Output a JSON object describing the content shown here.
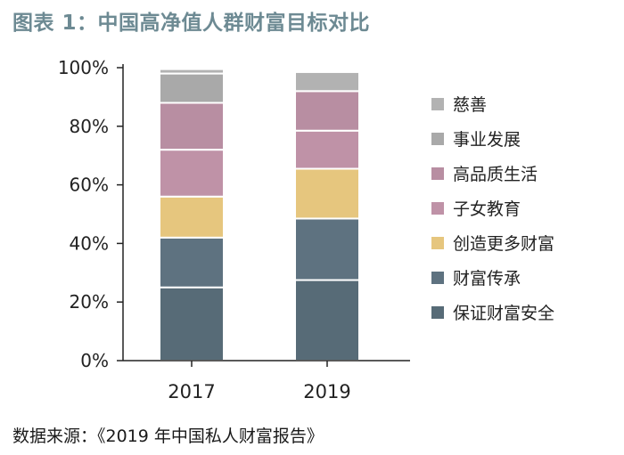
{
  "title": "图表 1：中国高净值人群财富目标对比",
  "source": "数据来源：《2019 年中国私人财富报告》",
  "colors": {
    "title": "#6d8a93",
    "axis": "#222222",
    "separator": "#ffffff"
  },
  "chart_data": {
    "type": "bar",
    "stacked": true,
    "categories": [
      "2017",
      "2019"
    ],
    "y_ticks": [
      "0%",
      "20%",
      "40%",
      "60%",
      "80%",
      "100%"
    ],
    "ylim": [
      0,
      100
    ],
    "legend_position": "right",
    "series": [
      {
        "name": "保证财富安全",
        "color": "#576b77",
        "values": [
          25,
          27.5
        ]
      },
      {
        "name": "财富传承",
        "color": "#5e7280",
        "values": [
          17,
          21
        ]
      },
      {
        "name": "创造更多财富",
        "color": "#e6c67e",
        "values": [
          14,
          17
        ]
      },
      {
        "name": "子女教育",
        "color": "#bf92a7",
        "values": [
          16,
          13
        ]
      },
      {
        "name": "高品质生活",
        "color": "#b88ea2",
        "values": [
          16,
          13.5
        ]
      },
      {
        "name": "事业发展",
        "color": "#a9a9a9",
        "values": [
          10,
          0
        ]
      },
      {
        "name": "慈善",
        "color": "#b2b2b2",
        "values": [
          1.5,
          6.5
        ]
      }
    ]
  }
}
